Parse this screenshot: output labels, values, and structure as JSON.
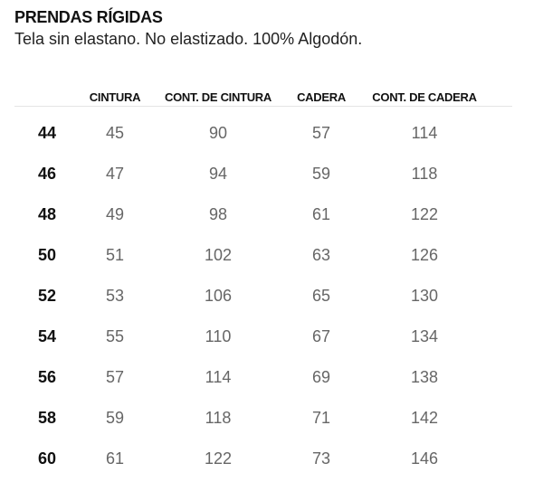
{
  "title": "PRENDAS RÍGIDAS",
  "subtitle": "Tela sin elastano. No elastizado. 100% Algodón.",
  "table": {
    "headers": [
      "",
      "CINTURA",
      "CONT. DE CINTURA",
      "CADERA",
      "CONT. DE CADERA"
    ],
    "rows": [
      [
        "44",
        "45",
        "90",
        "57",
        "114"
      ],
      [
        "46",
        "47",
        "94",
        "59",
        "118"
      ],
      [
        "48",
        "49",
        "98",
        "61",
        "122"
      ],
      [
        "50",
        "51",
        "102",
        "63",
        "126"
      ],
      [
        "52",
        "53",
        "106",
        "65",
        "130"
      ],
      [
        "54",
        "55",
        "110",
        "67",
        "134"
      ],
      [
        "56",
        "57",
        "114",
        "69",
        "138"
      ],
      [
        "58",
        "59",
        "118",
        "71",
        "142"
      ],
      [
        "60",
        "61",
        "122",
        "73",
        "146"
      ]
    ]
  }
}
